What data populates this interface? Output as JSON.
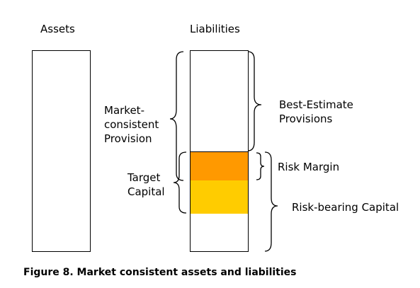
{
  "headings": {
    "assets": "Assets",
    "liabilities": "Liabilities"
  },
  "labels": {
    "market_consistent_provision": [
      "Market-",
      "consistent",
      "Provision"
    ],
    "best_estimate_provisions": [
      "Best-Estimate",
      "Provisions"
    ],
    "target_capital": [
      "Target",
      "Capital"
    ],
    "risk_margin": "Risk Margin",
    "risk_bearing_capital": "Risk-bearing Capital"
  },
  "caption": "Figure 8. Market consistent assets and liabilities",
  "colors": {
    "risk_margin_fill": "#FF9900",
    "target_capital_fill": "#FFCC00",
    "stroke": "#000000"
  }
}
